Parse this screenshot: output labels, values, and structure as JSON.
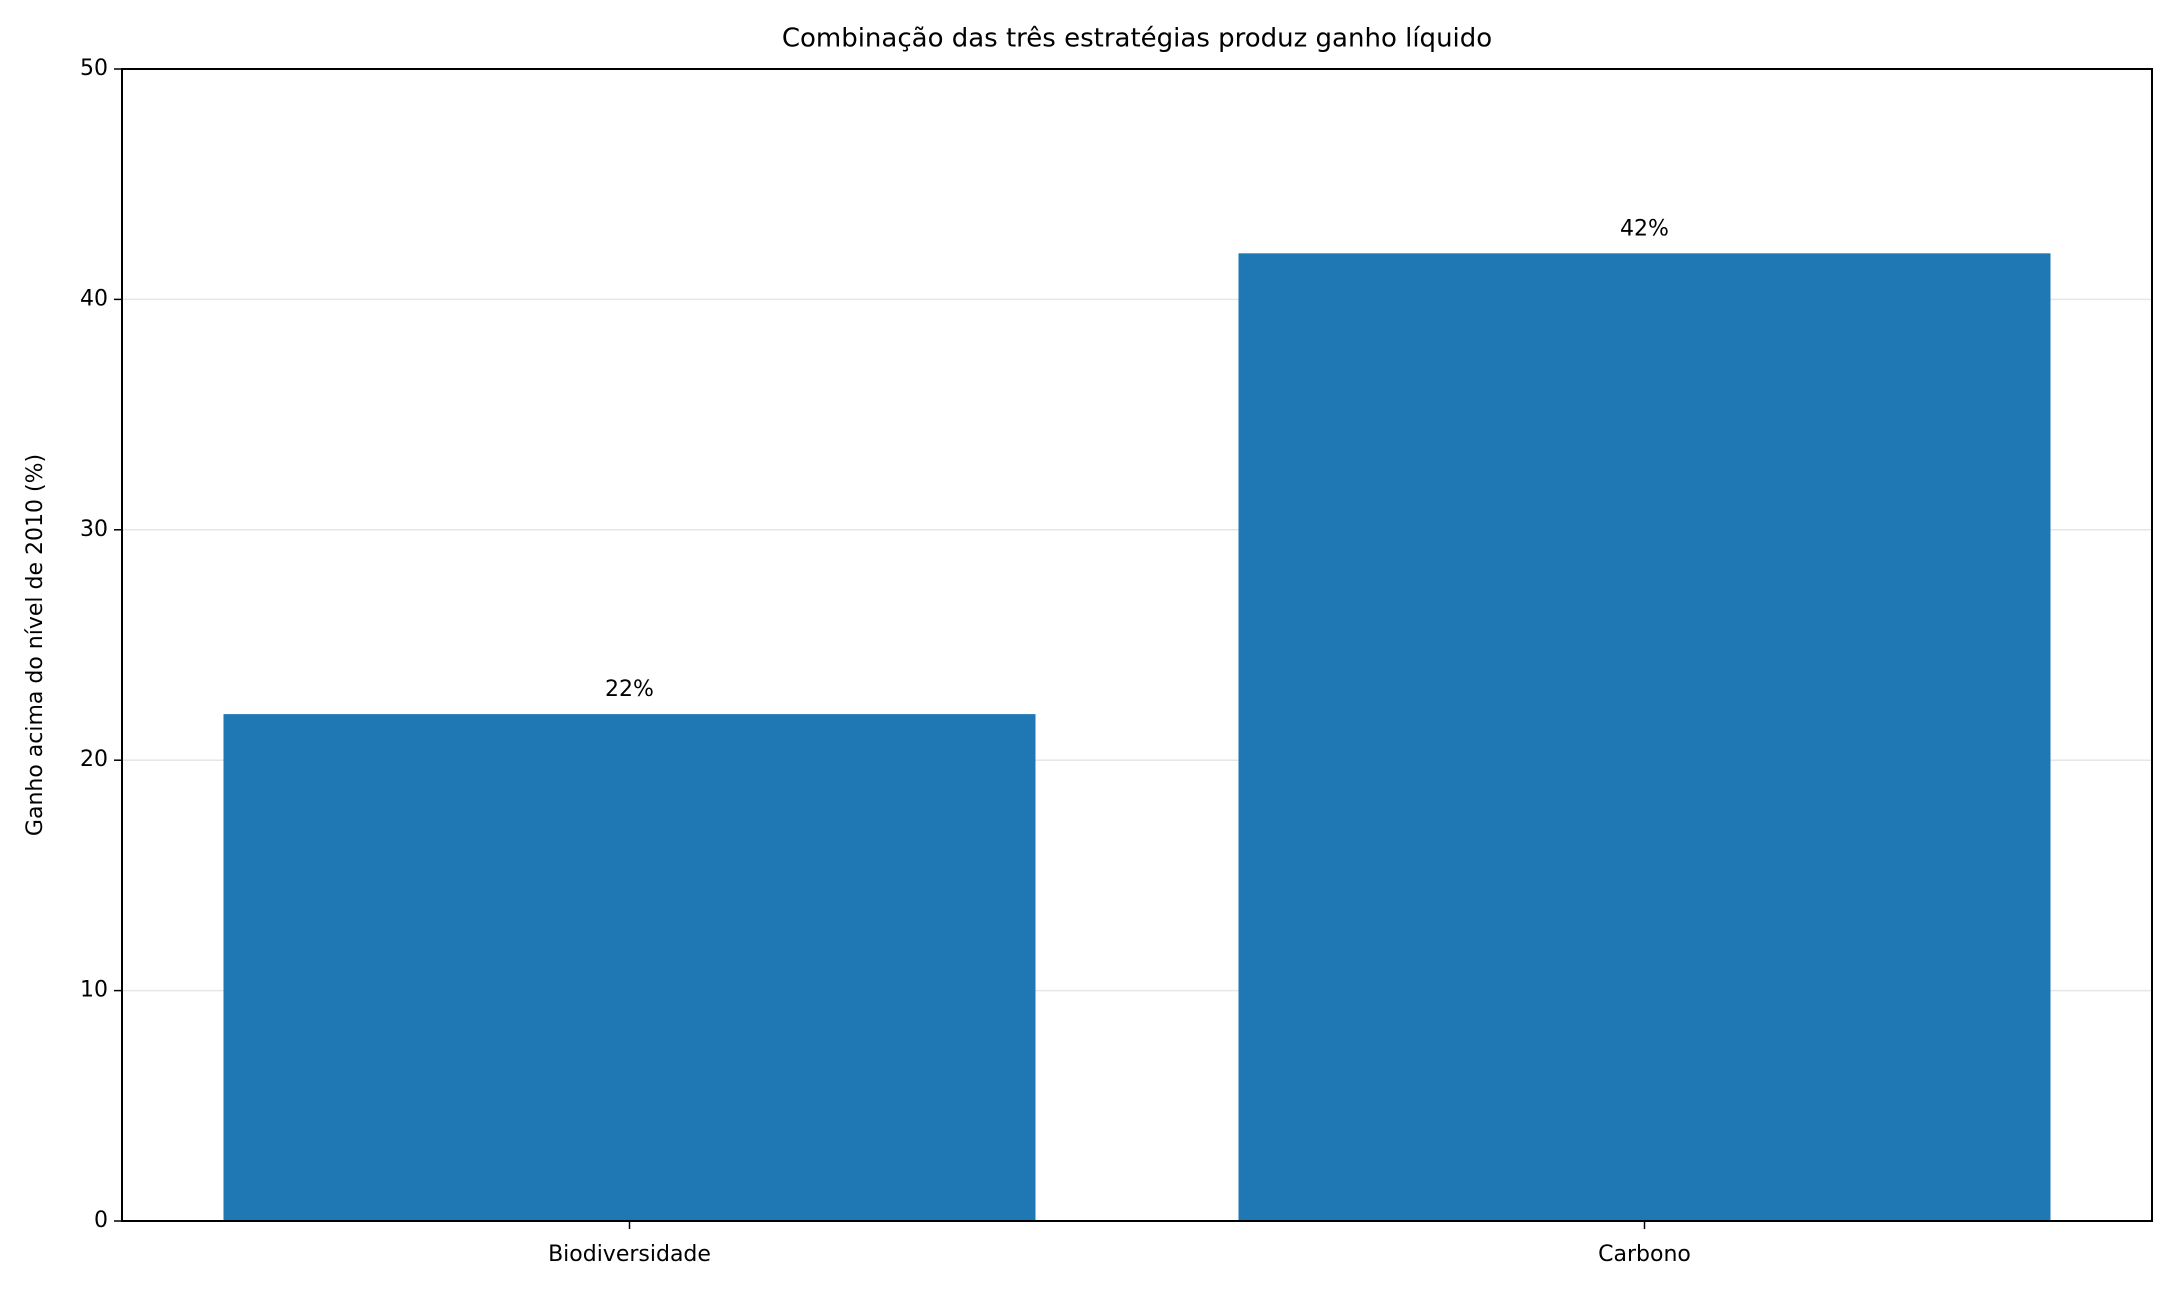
{
  "chart_data": {
    "type": "bar",
    "title": "Combinação das três estratégias produz ganho líquido",
    "y_label": "Ganho acima do nível de 2010 (%)",
    "categories": [
      "Biodiversidade",
      "Carbono"
    ],
    "values": [
      22,
      42
    ],
    "value_labels": [
      "22%",
      "42%"
    ],
    "color": "#1f77b4",
    "ylim": [
      0,
      50
    ],
    "yticks": [
      0,
      10,
      20,
      30,
      40,
      50
    ],
    "grid": true
  }
}
